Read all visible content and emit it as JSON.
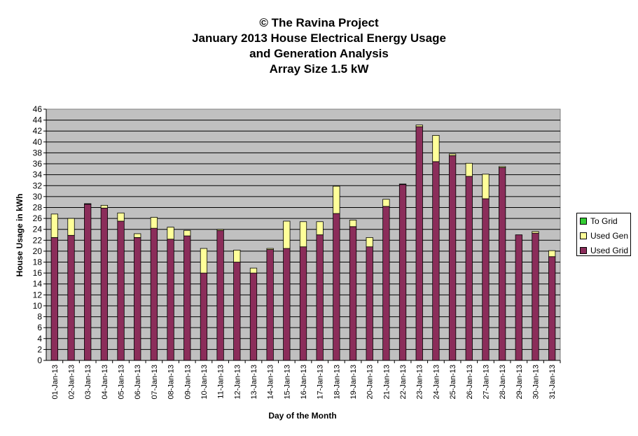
{
  "chart_data": {
    "type": "bar",
    "stacked": true,
    "title": [
      "© The Ravina Project",
      "January 2013 House Electrical Energy Usage",
      "and Generation Analysis",
      "Array Size 1.5 kW"
    ],
    "xlabel": "Day of the Month",
    "ylabel": "House Usage in kWh",
    "ylim": [
      0,
      46
    ],
    "ytick_step": 2,
    "grid": true,
    "legend_position": "right",
    "categories": [
      "01-Jan-13",
      "02-Jan-13",
      "03-Jan-13",
      "04-Jan-13",
      "05-Jan-13",
      "06-Jan-13",
      "07-Jan-13",
      "08-Jan-13",
      "09-Jan-13",
      "10-Jan-13",
      "11-Jan-13",
      "12-Jan-13",
      "13-Jan-13",
      "14-Jan-13",
      "15-Jan-13",
      "16-Jan-13",
      "17-Jan-13",
      "18-Jan-13",
      "19-Jan-13",
      "20-Jan-13",
      "21-Jan-13",
      "22-Jan-13",
      "23-Jan-13",
      "24-Jan-13",
      "25-Jan-13",
      "26-Jan-13",
      "27-Jan-13",
      "28-Jan-13",
      "29-Jan-13",
      "30-Jan-13",
      "31-Jan-13"
    ],
    "series": [
      {
        "name": "Used Grid",
        "color": "#8b2d5a",
        "values": [
          22.5,
          22.9,
          28.6,
          27.9,
          25.5,
          22.5,
          24.2,
          22.2,
          22.8,
          16.0,
          23.8,
          18.0,
          16.0,
          20.3,
          20.5,
          20.8,
          23.0,
          26.9,
          24.5,
          20.8,
          28.2,
          32.2,
          42.8,
          36.4,
          37.5,
          33.7,
          29.6,
          35.3,
          23.0,
          23.3,
          19.0
        ]
      },
      {
        "name": "Used Gen",
        "color": "#ffff99",
        "values": [
          4.3,
          3.1,
          0.1,
          0.5,
          1.5,
          0.7,
          2.0,
          2.2,
          1.0,
          4.5,
          0.2,
          2.2,
          0.9,
          0.2,
          5.0,
          4.6,
          2.4,
          5.0,
          1.2,
          1.7,
          1.3,
          0.1,
          0.3,
          4.8,
          0.3,
          2.4,
          4.5,
          0.2,
          0.0,
          0.3,
          1.1
        ]
      },
      {
        "name": "To Grid",
        "color": "#33cc33",
        "values": [
          0,
          0,
          0,
          0,
          0,
          0,
          0,
          0,
          0,
          0,
          0,
          0,
          0,
          0,
          0,
          0,
          0,
          0,
          0,
          0,
          0,
          0,
          0,
          0,
          0,
          0,
          0,
          0,
          0,
          0,
          0
        ]
      }
    ]
  },
  "legend": [
    {
      "label": "To Grid",
      "color": "#33cc33"
    },
    {
      "label": "Used Gen",
      "color": "#ffff99"
    },
    {
      "label": "Used Grid",
      "color": "#8b2d5a"
    }
  ]
}
